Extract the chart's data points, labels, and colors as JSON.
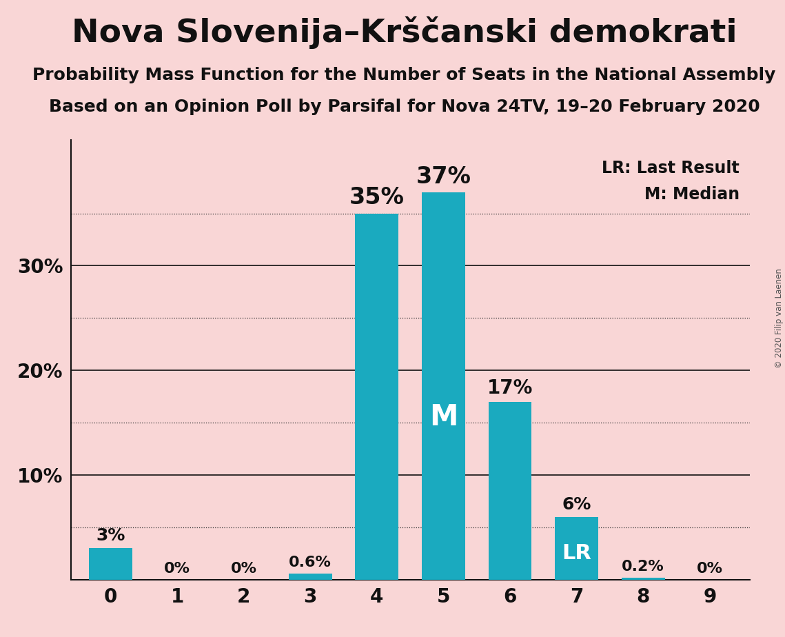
{
  "title": "Nova Slovenija–Krščanski demokrati",
  "subtitle1": "Probability Mass Function for the Number of Seats in the National Assembly",
  "subtitle2": "Based on an Opinion Poll by Parsifal for Nova 24TV, 19–20 February 2020",
  "copyright": "© 2020 Filip van Laenen",
  "categories": [
    0,
    1,
    2,
    3,
    4,
    5,
    6,
    7,
    8,
    9
  ],
  "values": [
    3.0,
    0.0,
    0.0,
    0.6,
    35.0,
    37.0,
    17.0,
    6.0,
    0.2,
    0.0
  ],
  "labels": [
    "3%",
    "0%",
    "0%",
    "0.6%",
    "35%",
    "37%",
    "17%",
    "6%",
    "0.2%",
    "0%"
  ],
  "bar_color": "#1aaabf",
  "background_color": "#f9d6d6",
  "ylim_max": 42,
  "solid_lines": [
    10,
    20,
    30
  ],
  "dotted_lines": [
    5,
    15,
    25,
    35
  ],
  "median_bar_idx": 5,
  "lr_bar_idx": 7,
  "legend_lr": "LR: Last Result",
  "legend_m": "M: Median",
  "title_fontsize": 34,
  "subtitle_fontsize": 18,
  "axis_fontsize": 20,
  "bar_label_color_outside": "#111111",
  "bar_label_color_inside": "#ffffff",
  "ytick_positions": [
    10,
    20,
    30
  ],
  "ytick_labels": [
    "10%",
    "20%",
    "30%"
  ]
}
